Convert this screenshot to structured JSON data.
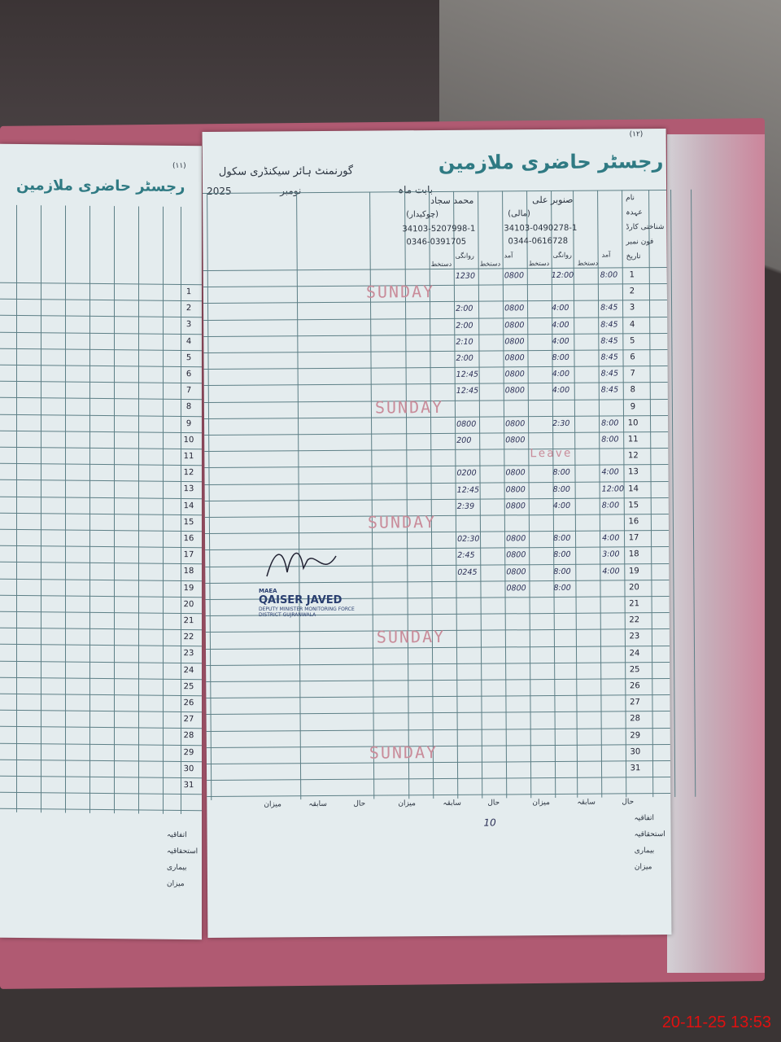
{
  "register_title": "رجسٹر حاضری ملازمین",
  "school_name": "گورنمنٹ ہائر سیکنڈری سکول",
  "month_label": "بابت ماہ",
  "month": "نومبر",
  "year": "2025",
  "page_numbers": {
    "left": "(۱۱)",
    "right": "(۱۲)"
  },
  "row_labels": [
    "نام",
    "عہدہ",
    "شناختی کارڈ",
    "فون نمبر",
    "تاریخ"
  ],
  "column_headers": [
    "آمد",
    "دستخط",
    "روانگی",
    "دستخط"
  ],
  "employees": [
    {
      "name": "صنوبر علی",
      "designation": "(مالی)",
      "cnic": "34103-0490278-1",
      "phone": "0344-0616728"
    },
    {
      "name": "محمد سجاد",
      "designation": "(چوکیدار)",
      "cnic": "34103-5207998-1",
      "phone": "0346-0391705"
    }
  ],
  "days": [
    "1",
    "2",
    "3",
    "4",
    "5",
    "6",
    "7",
    "8",
    "9",
    "10",
    "11",
    "12",
    "13",
    "14",
    "15",
    "16",
    "17",
    "18",
    "19",
    "20",
    "21",
    "22",
    "23",
    "24",
    "25",
    "26",
    "27",
    "28",
    "29",
    "30",
    "31"
  ],
  "sunday_label": "SUNDAY",
  "sunday_rows": [
    2,
    9,
    16,
    23,
    30
  ],
  "leave_label": "Leave",
  "entries": [
    {
      "day": 1,
      "e1_in": "8:00",
      "e1_out": "12:00",
      "e2_in": "0800",
      "e2_out": "1230"
    },
    {
      "day": 3,
      "e1_in": "8:45",
      "e1_out": "4:00",
      "e2_in": "0800",
      "e2_out": "2:00"
    },
    {
      "day": 4,
      "e1_in": "8:45",
      "e1_out": "4:00",
      "e2_in": "0800",
      "e2_out": "2:00"
    },
    {
      "day": 5,
      "e1_in": "8:45",
      "e1_out": "4:00",
      "e2_in": "0800",
      "e2_out": "2:10"
    },
    {
      "day": 6,
      "e1_in": "8:45",
      "e1_out": "8:00",
      "e2_in": "0800",
      "e2_out": "2:00"
    },
    {
      "day": 7,
      "e1_in": "8:45",
      "e1_out": "4:00",
      "e2_in": "0800",
      "e2_out": "12:45"
    },
    {
      "day": 8,
      "e1_in": "8:45",
      "e1_out": "4:00",
      "e2_in": "0800",
      "e2_out": "12:45"
    },
    {
      "day": 10,
      "e1_in": "8:00",
      "e1_out": "2:30",
      "e2_in": "0800",
      "e2_out": "0800"
    },
    {
      "day": 11,
      "e1_in": "8:00",
      "e1_out": "",
      "e2_in": "0800",
      "e2_out": "200"
    },
    {
      "day": 13,
      "e1_in": "4:00",
      "e1_out": "8:00",
      "e2_in": "0800",
      "e2_out": "0200"
    },
    {
      "day": 14,
      "e1_in": "12:00",
      "e1_out": "8:00",
      "e2_in": "0800",
      "e2_out": "12:45"
    },
    {
      "day": 15,
      "e1_in": "8:00",
      "e1_out": "4:00",
      "e2_in": "0800",
      "e2_out": "2:39"
    },
    {
      "day": 17,
      "e1_in": "4:00",
      "e1_out": "8:00",
      "e2_in": "0800",
      "e2_out": "02:30"
    },
    {
      "day": 18,
      "e1_in": "3:00",
      "e1_out": "8:00",
      "e2_in": "0800",
      "e2_out": "2:45"
    },
    {
      "day": 19,
      "e1_in": "4:00",
      "e1_out": "8:00",
      "e2_in": "0800",
      "e2_out": "0245"
    },
    {
      "day": 20,
      "e1_in": "",
      "e1_out": "8:00",
      "e2_in": "0800",
      "e2_out": ""
    }
  ],
  "summary_labels": [
    "اتفاقیہ",
    "استحقاقیہ",
    "بیماری",
    "میزان"
  ],
  "summary_headers": [
    "حال",
    "سابقہ",
    "میزان"
  ],
  "summary_value": "10",
  "stamp": {
    "line1": "MAEA",
    "name": "QAISER JAVED",
    "line2": "DEPUTY MINISTER MONITORING FORCE",
    "line3": "DISTRICT GUJRANWALA"
  },
  "timestamp": "20-11-25 13:53"
}
